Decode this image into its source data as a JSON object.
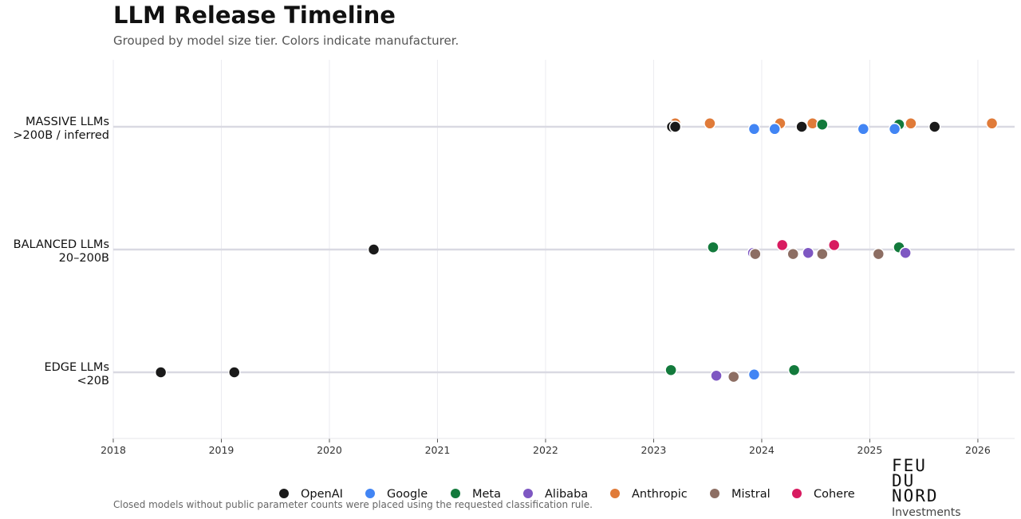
{
  "chart_data": {
    "type": "scatter",
    "title": "LLM Release Timeline",
    "subtitle": "Grouped by model size tier. Colors indicate manufacturer.",
    "footnote": "Closed models without public parameter counts were placed using the requested classification rule.",
    "xlim": [
      2018,
      2026.34
    ],
    "x_ticks": [
      "2018",
      "2019",
      "2020",
      "2021",
      "2022",
      "2023",
      "2024",
      "2025",
      "2026"
    ],
    "grid": "vertical",
    "legend_position": "bottom",
    "tiers": [
      {
        "id": "massive",
        "label_line1": "MASSIVE LLMs",
        "label_line2": ">200B / inferred"
      },
      {
        "id": "balanced",
        "label_line1": "BALANCED LLMs",
        "label_line2": "20–200B"
      },
      {
        "id": "edge",
        "label_line1": "EDGE LLMs",
        "label_line2": "<20B"
      }
    ],
    "manufacturers": [
      {
        "name": "OpenAI",
        "color": "#1a1a1a"
      },
      {
        "name": "Google",
        "color": "#4285f4"
      },
      {
        "name": "Meta",
        "color": "#137a3c"
      },
      {
        "name": "Alibaba",
        "color": "#7e57c2"
      },
      {
        "name": "Anthropic",
        "color": "#e07b39"
      },
      {
        "name": "Mistral",
        "color": "#8d6e63"
      },
      {
        "name": "Cohere",
        "color": "#d81b60"
      }
    ],
    "points": [
      {
        "tier": "massive",
        "maker": "Anthropic",
        "x": 2023.2,
        "jitter": 0.6
      },
      {
        "tier": "massive",
        "maker": "Anthropic",
        "x": 2023.52,
        "jitter": 0.6
      },
      {
        "tier": "massive",
        "maker": "Anthropic",
        "x": 2024.17,
        "jitter": 0.6
      },
      {
        "tier": "massive",
        "maker": "Anthropic",
        "x": 2024.47,
        "jitter": 0.6
      },
      {
        "tier": "massive",
        "maker": "Anthropic",
        "x": 2025.38,
        "jitter": 0.6
      },
      {
        "tier": "massive",
        "maker": "Anthropic",
        "x": 2026.13,
        "jitter": 0.6
      },
      {
        "tier": "massive",
        "maker": "Meta",
        "x": 2024.56,
        "jitter": 0.4
      },
      {
        "tier": "massive",
        "maker": "Meta",
        "x": 2025.27,
        "jitter": 0.4
      },
      {
        "tier": "massive",
        "maker": "OpenAI",
        "x": 2023.17,
        "jitter": 0
      },
      {
        "tier": "massive",
        "maker": "OpenAI",
        "x": 2023.2,
        "jitter": 0
      },
      {
        "tier": "massive",
        "maker": "OpenAI",
        "x": 2024.37,
        "jitter": 0
      },
      {
        "tier": "massive",
        "maker": "OpenAI",
        "x": 2025.6,
        "jitter": 0
      },
      {
        "tier": "massive",
        "maker": "Google",
        "x": 2023.93,
        "jitter": -0.4
      },
      {
        "tier": "massive",
        "maker": "Google",
        "x": 2024.12,
        "jitter": -0.4
      },
      {
        "tier": "massive",
        "maker": "Google",
        "x": 2024.94,
        "jitter": -0.4
      },
      {
        "tier": "massive",
        "maker": "Google",
        "x": 2025.23,
        "jitter": -0.4
      },
      {
        "tier": "balanced",
        "maker": "OpenAI",
        "x": 2020.41,
        "jitter": 0
      },
      {
        "tier": "balanced",
        "maker": "Meta",
        "x": 2023.55,
        "jitter": 0.4
      },
      {
        "tier": "balanced",
        "maker": "Meta",
        "x": 2025.27,
        "jitter": 0.4
      },
      {
        "tier": "balanced",
        "maker": "Cohere",
        "x": 2024.19,
        "jitter": 0.8
      },
      {
        "tier": "balanced",
        "maker": "Cohere",
        "x": 2024.67,
        "jitter": 0.8
      },
      {
        "tier": "balanced",
        "maker": "Alibaba",
        "x": 2023.92,
        "jitter": -0.6
      },
      {
        "tier": "balanced",
        "maker": "Alibaba",
        "x": 2024.43,
        "jitter": -0.6
      },
      {
        "tier": "balanced",
        "maker": "Alibaba",
        "x": 2025.33,
        "jitter": -0.6
      },
      {
        "tier": "balanced",
        "maker": "Mistral",
        "x": 2023.94,
        "jitter": -0.8
      },
      {
        "tier": "balanced",
        "maker": "Mistral",
        "x": 2024.29,
        "jitter": -0.8
      },
      {
        "tier": "balanced",
        "maker": "Mistral",
        "x": 2024.56,
        "jitter": -0.8
      },
      {
        "tier": "balanced",
        "maker": "Mistral",
        "x": 2025.08,
        "jitter": -0.8
      },
      {
        "tier": "edge",
        "maker": "OpenAI",
        "x": 2018.44,
        "jitter": 0
      },
      {
        "tier": "edge",
        "maker": "OpenAI",
        "x": 2019.12,
        "jitter": 0
      },
      {
        "tier": "edge",
        "maker": "Meta",
        "x": 2023.16,
        "jitter": 0.4
      },
      {
        "tier": "edge",
        "maker": "Meta",
        "x": 2024.3,
        "jitter": 0.4
      },
      {
        "tier": "edge",
        "maker": "Google",
        "x": 2023.93,
        "jitter": -0.4
      },
      {
        "tier": "edge",
        "maker": "Alibaba",
        "x": 2023.58,
        "jitter": -0.6
      },
      {
        "tier": "edge",
        "maker": "Mistral",
        "x": 2023.74,
        "jitter": -0.8
      }
    ]
  },
  "logo": {
    "lines": [
      "FEU",
      "DU",
      "NORD"
    ],
    "subtitle": "Investments"
  }
}
